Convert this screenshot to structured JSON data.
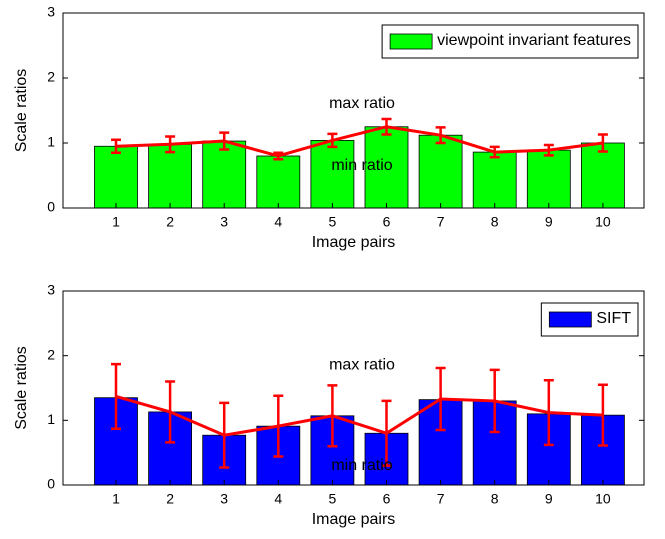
{
  "chart_data": [
    {
      "type": "bar",
      "xlabel": "Image pairs",
      "ylabel": "Scale ratios",
      "categories": [
        "1",
        "2",
        "3",
        "4",
        "5",
        "6",
        "7",
        "8",
        "9",
        "10"
      ],
      "ylim": [
        0,
        3
      ],
      "yticks": [
        0,
        1,
        2,
        3
      ],
      "legend": "upper right",
      "annotations": [
        "max ratio",
        "min ratio"
      ],
      "series": [
        {
          "name": "viewpoint invariant features",
          "color": "#00ff00",
          "values": [
            0.95,
            0.98,
            1.03,
            0.8,
            1.04,
            1.25,
            1.12,
            0.86,
            0.89,
            1.0
          ]
        },
        {
          "type": "line",
          "color": "#ff0000",
          "values": [
            0.95,
            0.98,
            1.03,
            0.8,
            1.04,
            1.25,
            1.12,
            0.86,
            0.89,
            1.0
          ],
          "errors": [
            0.1,
            0.12,
            0.13,
            0.05,
            0.1,
            0.12,
            0.12,
            0.08,
            0.08,
            0.13
          ]
        }
      ]
    },
    {
      "type": "bar",
      "xlabel": "Image pairs",
      "ylabel": "Scale ratios",
      "categories": [
        "1",
        "2",
        "3",
        "4",
        "5",
        "6",
        "7",
        "8",
        "9",
        "10"
      ],
      "ylim": [
        0,
        3
      ],
      "yticks": [
        0,
        1,
        2,
        3
      ],
      "legend": "upper right",
      "annotations": [
        "max ratio",
        "min ratio"
      ],
      "series": [
        {
          "name": "SIFT",
          "color": "#0000ff",
          "values": [
            1.35,
            1.13,
            0.77,
            0.91,
            1.07,
            0.8,
            1.32,
            1.3,
            1.1,
            1.08
          ]
        },
        {
          "type": "line",
          "color": "#ff0000",
          "values": [
            1.37,
            1.13,
            0.77,
            0.91,
            1.07,
            0.8,
            1.33,
            1.3,
            1.12,
            1.08
          ],
          "errors": [
            0.5,
            0.47,
            0.5,
            0.47,
            0.47,
            0.5,
            0.48,
            0.48,
            0.5,
            0.47
          ]
        }
      ]
    }
  ]
}
